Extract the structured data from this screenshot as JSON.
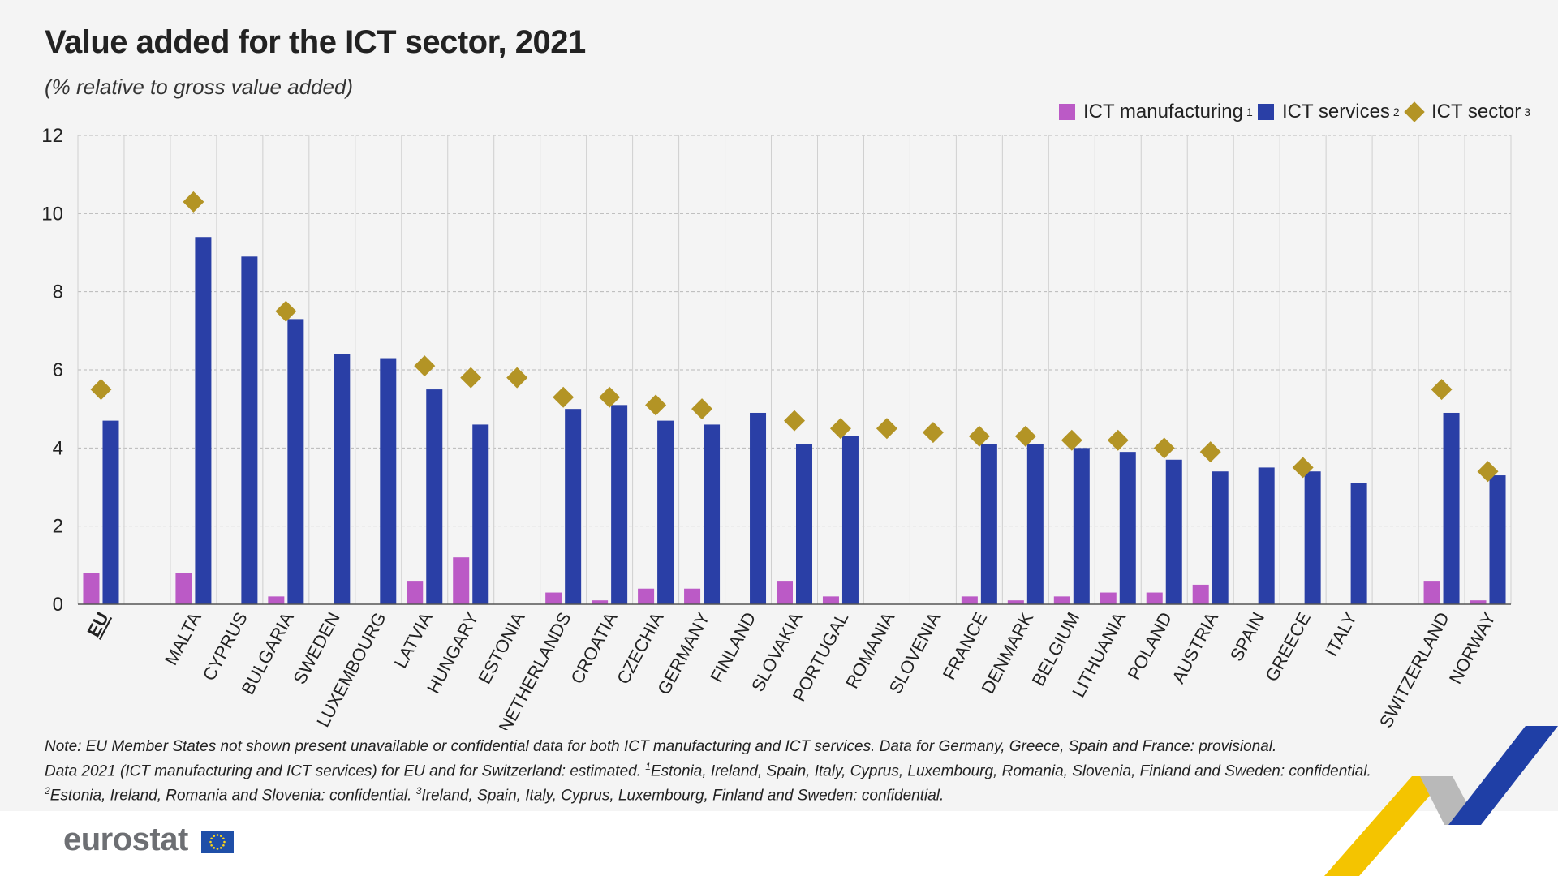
{
  "chart_data": {
    "type": "bar",
    "title": "Value added for the ICT sector, 2021",
    "subtitle": "(% relative to gross value added)",
    "ylim": [
      0,
      12
    ],
    "yticks": [
      0,
      2,
      4,
      6,
      8,
      10,
      12
    ],
    "grid": true,
    "legend_position": "top-right",
    "categories": [
      "EU",
      "",
      "MALTA",
      "CYPRUS",
      "BULGARIA",
      "SWEDEN",
      "LUXEMBOURG",
      "LATVIA",
      "HUNGARY",
      "ESTONIA",
      "NETHERLANDS",
      "CROATIA",
      "CZECHIA",
      "GERMANY",
      "FINLAND",
      "SLOVAKIA",
      "PORTUGAL",
      "ROMANIA",
      "SLOVENIA",
      "FRANCE",
      "DENMARK",
      "BELGIUM",
      "LITHUANIA",
      "POLAND",
      "AUSTRIA",
      "SPAIN",
      "GREECE",
      "ITALY",
      "",
      "SWITZERLAND",
      "NORWAY"
    ],
    "series": [
      {
        "name": "ICT manufacturing",
        "note": "1",
        "kind": "bar",
        "color": "#bb5ac6",
        "values": [
          0.8,
          null,
          0.8,
          null,
          0.2,
          null,
          null,
          0.6,
          1.2,
          null,
          0.3,
          0.1,
          0.4,
          0.4,
          null,
          0.6,
          0.2,
          null,
          null,
          0.2,
          0.1,
          0.2,
          0.3,
          0.3,
          0.5,
          null,
          null,
          null,
          null,
          0.6,
          0.1
        ]
      },
      {
        "name": "ICT services",
        "note": "2",
        "kind": "bar",
        "color": "#2a3fa6",
        "values": [
          4.7,
          null,
          9.4,
          8.9,
          7.3,
          6.4,
          6.3,
          5.5,
          4.6,
          null,
          5.0,
          5.1,
          4.7,
          4.6,
          4.9,
          4.1,
          4.3,
          null,
          null,
          4.1,
          4.1,
          4.0,
          3.9,
          3.7,
          3.4,
          3.5,
          3.4,
          3.1,
          null,
          4.9,
          3.3
        ]
      },
      {
        "name": "ICT sector",
        "note": "3",
        "kind": "marker",
        "color": "#b39425",
        "values": [
          5.5,
          null,
          10.3,
          null,
          7.5,
          null,
          null,
          6.1,
          5.8,
          5.8,
          5.3,
          5.3,
          5.1,
          5.0,
          null,
          4.7,
          4.5,
          4.5,
          4.4,
          4.3,
          4.3,
          4.2,
          4.2,
          4.0,
          3.9,
          null,
          3.5,
          null,
          null,
          5.5,
          3.4
        ]
      }
    ]
  },
  "notes": {
    "line1": "Note: EU Member States not shown present unavailable or confidential data for both ICT manufacturing and ICT services. Data for Germany, Greece, Spain and France: provisional.",
    "line2_a": "Data 2021 (ICT manufacturing and ICT services) for EU and for Switzerland: estimated.",
    "sup1": "1",
    "line2_b": "Estonia, Ireland, Spain, Italy, Cyprus, Luxembourg, Romania, Slovenia, Finland and Sweden: confidential.",
    "sup2": "2",
    "line3_a": "Estonia, Ireland, Romania and Slovenia: confidential.",
    "sup3": "3",
    "line3_b": "Ireland, Spain, Italy, Cyprus, Luxembourg, Finland and Sweden: confidential."
  },
  "footer": {
    "logo_text": "eurostat"
  },
  "colors": {
    "manufacturing": "#bb5ac6",
    "services": "#2a3fa6",
    "sector": "#b39425",
    "flag_blue": "#1f4fa8",
    "flag_star": "#ffd617"
  }
}
